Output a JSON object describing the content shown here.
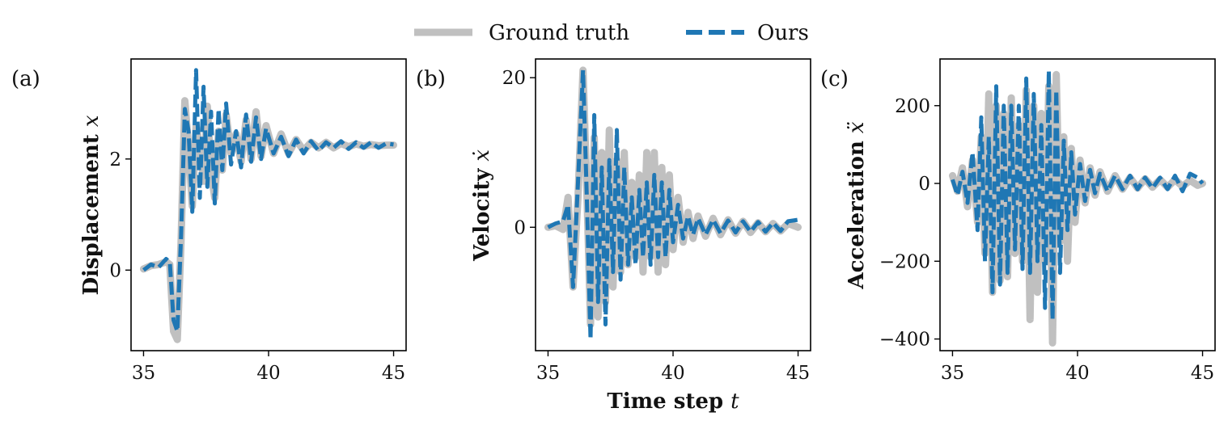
{
  "chart_data": {
    "type": "line",
    "legend": {
      "placement": "top-center",
      "entries": [
        {
          "label": "Ground truth",
          "color": "#c0c0c0",
          "style": "solid"
        },
        {
          "label": "Ours",
          "color": "#1f77b4",
          "style": "dashed"
        }
      ]
    },
    "shared_xlabel_prefix": "Time step",
    "shared_xlabel_symbol": "t",
    "panels": [
      {
        "tag": "(a)",
        "ylabel_prefix": "Displacement",
        "ylabel_symbol": "x",
        "xlim": [
          34.5,
          45.5
        ],
        "ylim": [
          -1.45,
          3.8
        ],
        "xticks": [
          35,
          40,
          45
        ],
        "xtick_labels": [
          "35",
          "40",
          "45"
        ],
        "yticks": [
          0,
          2
        ],
        "ytick_labels": [
          "0",
          "2"
        ],
        "series": {
          "ground_truth": {
            "x": [
              35.0,
              35.3,
              35.6,
              35.9,
              36.05,
              36.2,
              36.35,
              36.5,
              36.65,
              36.8,
              36.95,
              37.1,
              37.25,
              37.4,
              37.55,
              37.7,
              37.85,
              38.0,
              38.15,
              38.3,
              38.5,
              38.7,
              38.9,
              39.1,
              39.3,
              39.5,
              39.7,
              39.9,
              40.2,
              40.5,
              40.8,
              41.1,
              41.4,
              41.7,
              42.0,
              42.3,
              42.6,
              42.9,
              43.2,
              43.5,
              43.8,
              44.1,
              44.4,
              44.7,
              45.0
            ],
            "y": [
              0.02,
              0.08,
              0.1,
              0.15,
              0.1,
              -1.1,
              -1.25,
              0.5,
              3.05,
              2.2,
              1.15,
              2.6,
              2.2,
              1.6,
              2.95,
              1.75,
              1.3,
              2.5,
              1.8,
              2.8,
              2.1,
              2.45,
              1.95,
              2.7,
              2.0,
              2.85,
              2.05,
              2.6,
              2.1,
              2.45,
              2.1,
              2.35,
              2.15,
              2.3,
              2.2,
              2.3,
              2.2,
              2.28,
              2.22,
              2.27,
              2.23,
              2.26,
              2.24,
              2.25,
              2.25
            ]
          },
          "ours": {
            "x": [
              35.0,
              35.3,
              35.6,
              35.9,
              36.05,
              36.2,
              36.35,
              36.5,
              36.65,
              36.8,
              36.95,
              37.1,
              37.25,
              37.4,
              37.55,
              37.7,
              37.85,
              38.0,
              38.15,
              38.3,
              38.5,
              38.7,
              38.9,
              39.1,
              39.3,
              39.5,
              39.7,
              39.9,
              40.2,
              40.5,
              40.8,
              41.1,
              41.4,
              41.7,
              42.0,
              42.3,
              42.6,
              42.9,
              43.2,
              43.5,
              43.8,
              44.1,
              44.4,
              44.7,
              45.0
            ],
            "y": [
              0.0,
              0.1,
              0.05,
              0.2,
              0.15,
              -0.9,
              -1.1,
              0.6,
              2.9,
              2.5,
              1.05,
              3.6,
              1.3,
              3.3,
              1.5,
              2.85,
              1.2,
              2.9,
              1.8,
              3.0,
              1.9,
              2.5,
              1.85,
              2.8,
              1.95,
              2.75,
              2.0,
              2.55,
              2.1,
              2.4,
              2.05,
              2.35,
              2.1,
              2.32,
              2.15,
              2.3,
              2.2,
              2.32,
              2.18,
              2.3,
              2.2,
              2.3,
              2.2,
              2.28,
              2.26
            ]
          }
        }
      },
      {
        "tag": "(b)",
        "ylabel_prefix": "Velocity",
        "ylabel_symbol": "ẋ",
        "xlim": [
          34.5,
          45.5
        ],
        "ylim": [
          -16.5,
          22.5
        ],
        "xticks": [
          35,
          40,
          45
        ],
        "xtick_labels": [
          "35",
          "40",
          "45"
        ],
        "yticks": [
          0,
          20
        ],
        "ytick_labels": [
          "0",
          "20"
        ],
        "series": {
          "ground_truth": {
            "x": [
              35.0,
              35.3,
              35.6,
              35.8,
              36.0,
              36.2,
              36.4,
              36.55,
              36.7,
              36.85,
              37.0,
              37.15,
              37.3,
              37.45,
              37.6,
              37.75,
              37.9,
              38.05,
              38.2,
              38.35,
              38.5,
              38.65,
              38.8,
              38.95,
              39.1,
              39.25,
              39.4,
              39.55,
              39.7,
              39.85,
              40.0,
              40.2,
              40.4,
              40.6,
              40.8,
              41.0,
              41.3,
              41.6,
              41.9,
              42.2,
              42.5,
              42.8,
              43.1,
              43.4,
              43.7,
              44.0,
              44.3,
              44.6,
              45.0
            ],
            "y": [
              0.0,
              0.2,
              -0.3,
              4.0,
              -8.0,
              4.0,
              21.0,
              5.0,
              -13.0,
              12.0,
              -12.0,
              10.0,
              -10.0,
              13.0,
              -8.0,
              9.0,
              -6.0,
              10.0,
              -5.0,
              6.0,
              -4.0,
              7.0,
              -6.0,
              10.0,
              -4.0,
              10.0,
              -6.0,
              8.0,
              -5.0,
              7.0,
              -3.0,
              4.0,
              -2.0,
              2.0,
              -1.5,
              1.5,
              -1.2,
              1.2,
              -1.0,
              1.0,
              -0.8,
              0.8,
              -0.7,
              0.6,
              -0.6,
              0.5,
              -0.5,
              0.5,
              0.0
            ]
          },
          "ours": {
            "x": [
              35.0,
              35.3,
              35.6,
              35.8,
              36.0,
              36.2,
              36.4,
              36.55,
              36.7,
              36.85,
              37.0,
              37.15,
              37.3,
              37.45,
              37.6,
              37.75,
              37.9,
              38.05,
              38.2,
              38.35,
              38.5,
              38.65,
              38.8,
              38.95,
              39.1,
              39.25,
              39.4,
              39.55,
              39.7,
              39.85,
              40.0,
              40.2,
              40.4,
              40.6,
              40.8,
              41.0,
              41.3,
              41.6,
              41.9,
              42.2,
              42.5,
              42.8,
              43.1,
              43.4,
              43.7,
              44.0,
              44.3,
              44.6,
              45.0
            ],
            "y": [
              0.0,
              0.5,
              0.8,
              3.0,
              -8.0,
              6.0,
              21.0,
              4.0,
              -15.0,
              15.0,
              -10.0,
              8.0,
              -13.0,
              9.0,
              -6.0,
              13.0,
              -7.0,
              8.0,
              -5.0,
              4.0,
              -5.0,
              5.0,
              -4.0,
              6.0,
              -5.0,
              7.0,
              -4.0,
              6.0,
              -4.0,
              5.0,
              -2.0,
              3.0,
              -1.5,
              1.5,
              -1.0,
              1.2,
              -1.0,
              1.0,
              -0.8,
              0.9,
              -0.7,
              0.8,
              -0.6,
              0.7,
              -0.6,
              0.6,
              -0.5,
              0.8,
              1.0
            ]
          }
        }
      },
      {
        "tag": "(c)",
        "ylabel_prefix": "Acceleration",
        "ylabel_symbol": "ẍ",
        "xlim": [
          34.5,
          45.5
        ],
        "ylim": [
          -430,
          320
        ],
        "xticks": [
          35,
          40,
          45
        ],
        "xtick_labels": [
          "35",
          "40",
          "45"
        ],
        "yticks": [
          -400,
          -200,
          0,
          200
        ],
        "ytick_labels": [
          "−400",
          "−200",
          "0",
          "200"
        ],
        "series": {
          "ground_truth": {
            "x": [
              35.0,
              35.2,
              35.4,
              35.6,
              35.8,
              36.0,
              36.15,
              36.3,
              36.45,
              36.6,
              36.75,
              36.9,
              37.05,
              37.2,
              37.35,
              37.5,
              37.65,
              37.8,
              37.95,
              38.1,
              38.25,
              38.4,
              38.55,
              38.7,
              38.85,
              39.0,
              39.15,
              39.3,
              39.45,
              39.6,
              39.75,
              39.9,
              40.1,
              40.3,
              40.5,
              40.7,
              40.9,
              41.2,
              41.5,
              41.8,
              42.1,
              42.4,
              42.7,
              43.0,
              43.3,
              43.6,
              43.9,
              44.2,
              44.5,
              44.8,
              45.0
            ],
            "y": [
              20,
              -20,
              40,
              -60,
              60,
              -100,
              120,
              -180,
              230,
              -280,
              200,
              -250,
              180,
              -240,
              220,
              -180,
              150,
              -200,
              240,
              -350,
              200,
              -280,
              180,
              -200,
              250,
              -410,
              280,
              -150,
              120,
              -200,
              90,
              -100,
              60,
              -50,
              40,
              -30,
              30,
              -20,
              20,
              -15,
              15,
              -12,
              12,
              -10,
              10,
              -10,
              10,
              -8,
              8,
              -5,
              0
            ]
          },
          "ours": {
            "x": [
              35.0,
              35.2,
              35.4,
              35.6,
              35.8,
              36.0,
              36.15,
              36.3,
              36.45,
              36.6,
              36.75,
              36.9,
              37.05,
              37.2,
              37.35,
              37.5,
              37.65,
              37.8,
              37.95,
              38.1,
              38.25,
              38.4,
              38.55,
              38.7,
              38.85,
              39.0,
              39.15,
              39.3,
              39.45,
              39.6,
              39.75,
              39.9,
              40.1,
              40.3,
              40.5,
              40.7,
              40.9,
              41.2,
              41.5,
              41.8,
              42.1,
              42.4,
              42.7,
              43.0,
              43.3,
              43.6,
              43.9,
              44.2,
              44.5,
              44.8,
              45.0
            ],
            "y": [
              10,
              -30,
              30,
              -50,
              80,
              -120,
              170,
              -200,
              120,
              -280,
              250,
              -260,
              200,
              -230,
              200,
              -170,
              200,
              -220,
              270,
              -230,
              230,
              -200,
              150,
              -320,
              290,
              -350,
              240,
              -230,
              110,
              -120,
              80,
              -80,
              50,
              -45,
              35,
              -25,
              25,
              -20,
              20,
              -15,
              20,
              -15,
              15,
              -12,
              15,
              -15,
              20,
              -20,
              25,
              15,
              0
            ]
          }
        }
      }
    ]
  }
}
